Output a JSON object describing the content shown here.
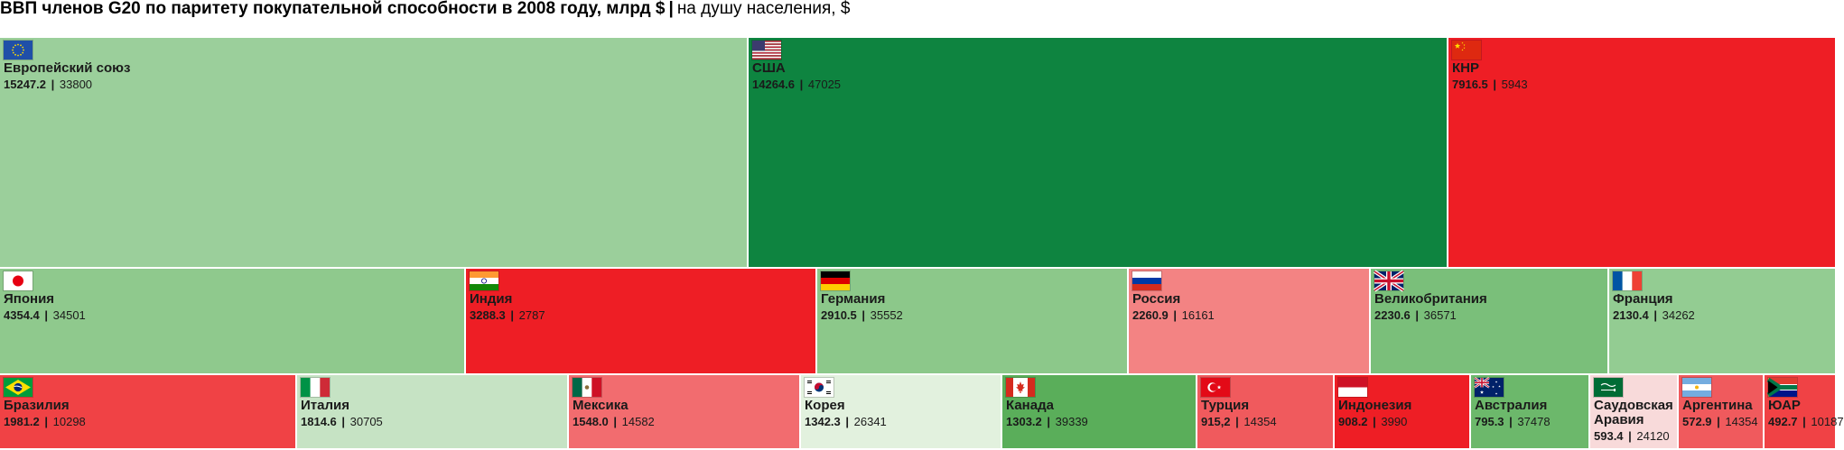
{
  "chart_data": {
    "type": "treemap",
    "title": "ВВП членов G20 по паритету покупательной способности в 2008 году, млрд $",
    "separator": "|",
    "subtitle": "на душу населения, $",
    "colors": {
      "pos_strong": "#0e8440",
      "pos_mid": "#5aae5a",
      "pos_light": "#9bcf9b",
      "pos_pale": "#c6e3c4",
      "pos_faint": "#e2f1de",
      "neg_strong": "#ee1e25",
      "neg_mid": "#f05a5d",
      "neg_light": "#f38383",
      "neg_pale": "#f8dada"
    },
    "items": [
      {
        "name": "Европейский союз",
        "gdp": "15247.2",
        "per_capita": "33800",
        "flag": "eu-flag",
        "color": "#9bcf9b"
      },
      {
        "name": "США",
        "gdp": "14264.6",
        "per_capita": "47025",
        "flag": "usa-flag",
        "color": "#0e8440"
      },
      {
        "name": "КНР",
        "gdp": "7916.5",
        "per_capita": "5943",
        "flag": "china-flag",
        "color": "#ee1e25"
      },
      {
        "name": "Япония",
        "gdp": "4354.4",
        "per_capita": "34501",
        "flag": "japan-flag",
        "color": "#8fc98d"
      },
      {
        "name": "Индия",
        "gdp": "3288.3",
        "per_capita": "2787",
        "flag": "india-flag",
        "color": "#ee1e25"
      },
      {
        "name": "Германия",
        "gdp": "2910.5",
        "per_capita": "35552",
        "flag": "germany-flag",
        "color": "#8cc88a"
      },
      {
        "name": "Россия",
        "gdp": "2260.9",
        "per_capita": "16161",
        "flag": "russia-flag",
        "color": "#f38383"
      },
      {
        "name": "Великобритания",
        "gdp": "2230.6",
        "per_capita": "36571",
        "flag": "uk-flag",
        "color": "#7abf7a"
      },
      {
        "name": "Франция",
        "gdp": "2130.4",
        "per_capita": "34262",
        "flag": "france-flag",
        "color": "#93cc92"
      },
      {
        "name": "Бразилия",
        "gdp": "1981.2",
        "per_capita": "10298",
        "flag": "brazil-flag",
        "color": "#f04245"
      },
      {
        "name": "Италия",
        "gdp": "1814.6",
        "per_capita": "30705",
        "flag": "italy-flag",
        "color": "#c6e3c4"
      },
      {
        "name": "Мексика",
        "gdp": "1548.0",
        "per_capita": "14582",
        "flag": "mexico-flag",
        "color": "#f26c6f"
      },
      {
        "name": "Корея",
        "gdp": "1342.3",
        "per_capita": "26341",
        "flag": "korea-flag",
        "color": "#e2f1de"
      },
      {
        "name": "Канада",
        "gdp": "1303.2",
        "per_capita": "39339",
        "flag": "canada-flag",
        "color": "#5aae5a"
      },
      {
        "name": "Турция",
        "gdp": "915,2",
        "per_capita": "14354",
        "flag": "turkey-flag",
        "color": "#f05a5d"
      },
      {
        "name": "Индонезия",
        "gdp": "908.2",
        "per_capita": "3990",
        "flag": "indonesia-flag",
        "color": "#ee1e25"
      },
      {
        "name": "Австралия",
        "gdp": "795.3",
        "per_capita": "37478",
        "flag": "australia-flag",
        "color": "#6cb86b"
      },
      {
        "name": "Саудовская Аравия",
        "gdp": "593.4",
        "per_capita": "24120",
        "flag": "saudi-flag",
        "color": "#f8dada"
      },
      {
        "name": "Аргентина",
        "gdp": "572.9",
        "per_capita": "14354",
        "flag": "argentina-flag",
        "color": "#f05a5d"
      },
      {
        "name": "ЮАР",
        "gdp": "492.7",
        "per_capita": "10187",
        "flag": "south-africa-flag",
        "color": "#f04245"
      }
    ]
  }
}
